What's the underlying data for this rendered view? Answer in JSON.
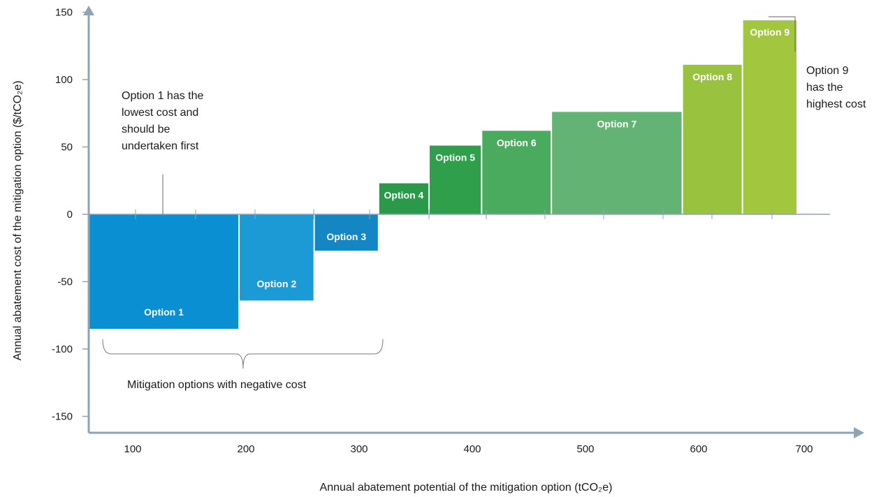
{
  "chart_data": {
    "type": "bar",
    "variant": "marginal-abatement-cost-curve",
    "xlabel": "Annual abatement potential of the mitigation option (tCO₂e)",
    "ylabel": "Annual abatement cost of the mitigation option ($/tCO₂e)",
    "xlim": [
      40,
      740
    ],
    "ylim": [
      -165,
      160
    ],
    "x_ticks": [
      100,
      200,
      300,
      400,
      500,
      600,
      700
    ],
    "y_ticks": [
      150,
      100,
      50,
      0,
      -50,
      -100,
      -150
    ],
    "grid": false,
    "series": [
      {
        "label": "Option 1",
        "x_start": 40,
        "x_end": 180,
        "value": -85,
        "color": "#0a8fd2"
      },
      {
        "label": "Option 2",
        "x_start": 180,
        "x_end": 250,
        "value": -64,
        "color": "#1b9ad6"
      },
      {
        "label": "Option 3",
        "x_start": 250,
        "x_end": 310,
        "value": -27,
        "color": "#1486c4"
      },
      {
        "label": "Option 4",
        "x_start": 310,
        "x_end": 357,
        "value": 23,
        "color": "#2a9a4a"
      },
      {
        "label": "Option 5",
        "x_start": 357,
        "x_end": 406,
        "value": 51,
        "color": "#2f9f4c"
      },
      {
        "label": "Option 6",
        "x_start": 406,
        "x_end": 471,
        "value": 62,
        "color": "#4aab5f"
      },
      {
        "label": "Option 7",
        "x_start": 471,
        "x_end": 593,
        "value": 76,
        "color": "#63b474"
      },
      {
        "label": "Option 8",
        "x_start": 593,
        "x_end": 649,
        "value": 111,
        "color": "#99c23e"
      },
      {
        "label": "Option 9",
        "x_start": 649,
        "x_end": 700,
        "value": 144,
        "color": "#a3c63f"
      }
    ],
    "annotations": {
      "lowest_cost": [
        "Option 1 has the",
        "lowest cost and",
        "should be",
        "undertaken first"
      ],
      "highest_cost": [
        "Option 9",
        "has the",
        "highest cost"
      ],
      "negative_cost": "Mitigation options with negative cost"
    },
    "colors": {
      "axis": "#8ea4b4",
      "annotation_line": "#555555"
    }
  }
}
